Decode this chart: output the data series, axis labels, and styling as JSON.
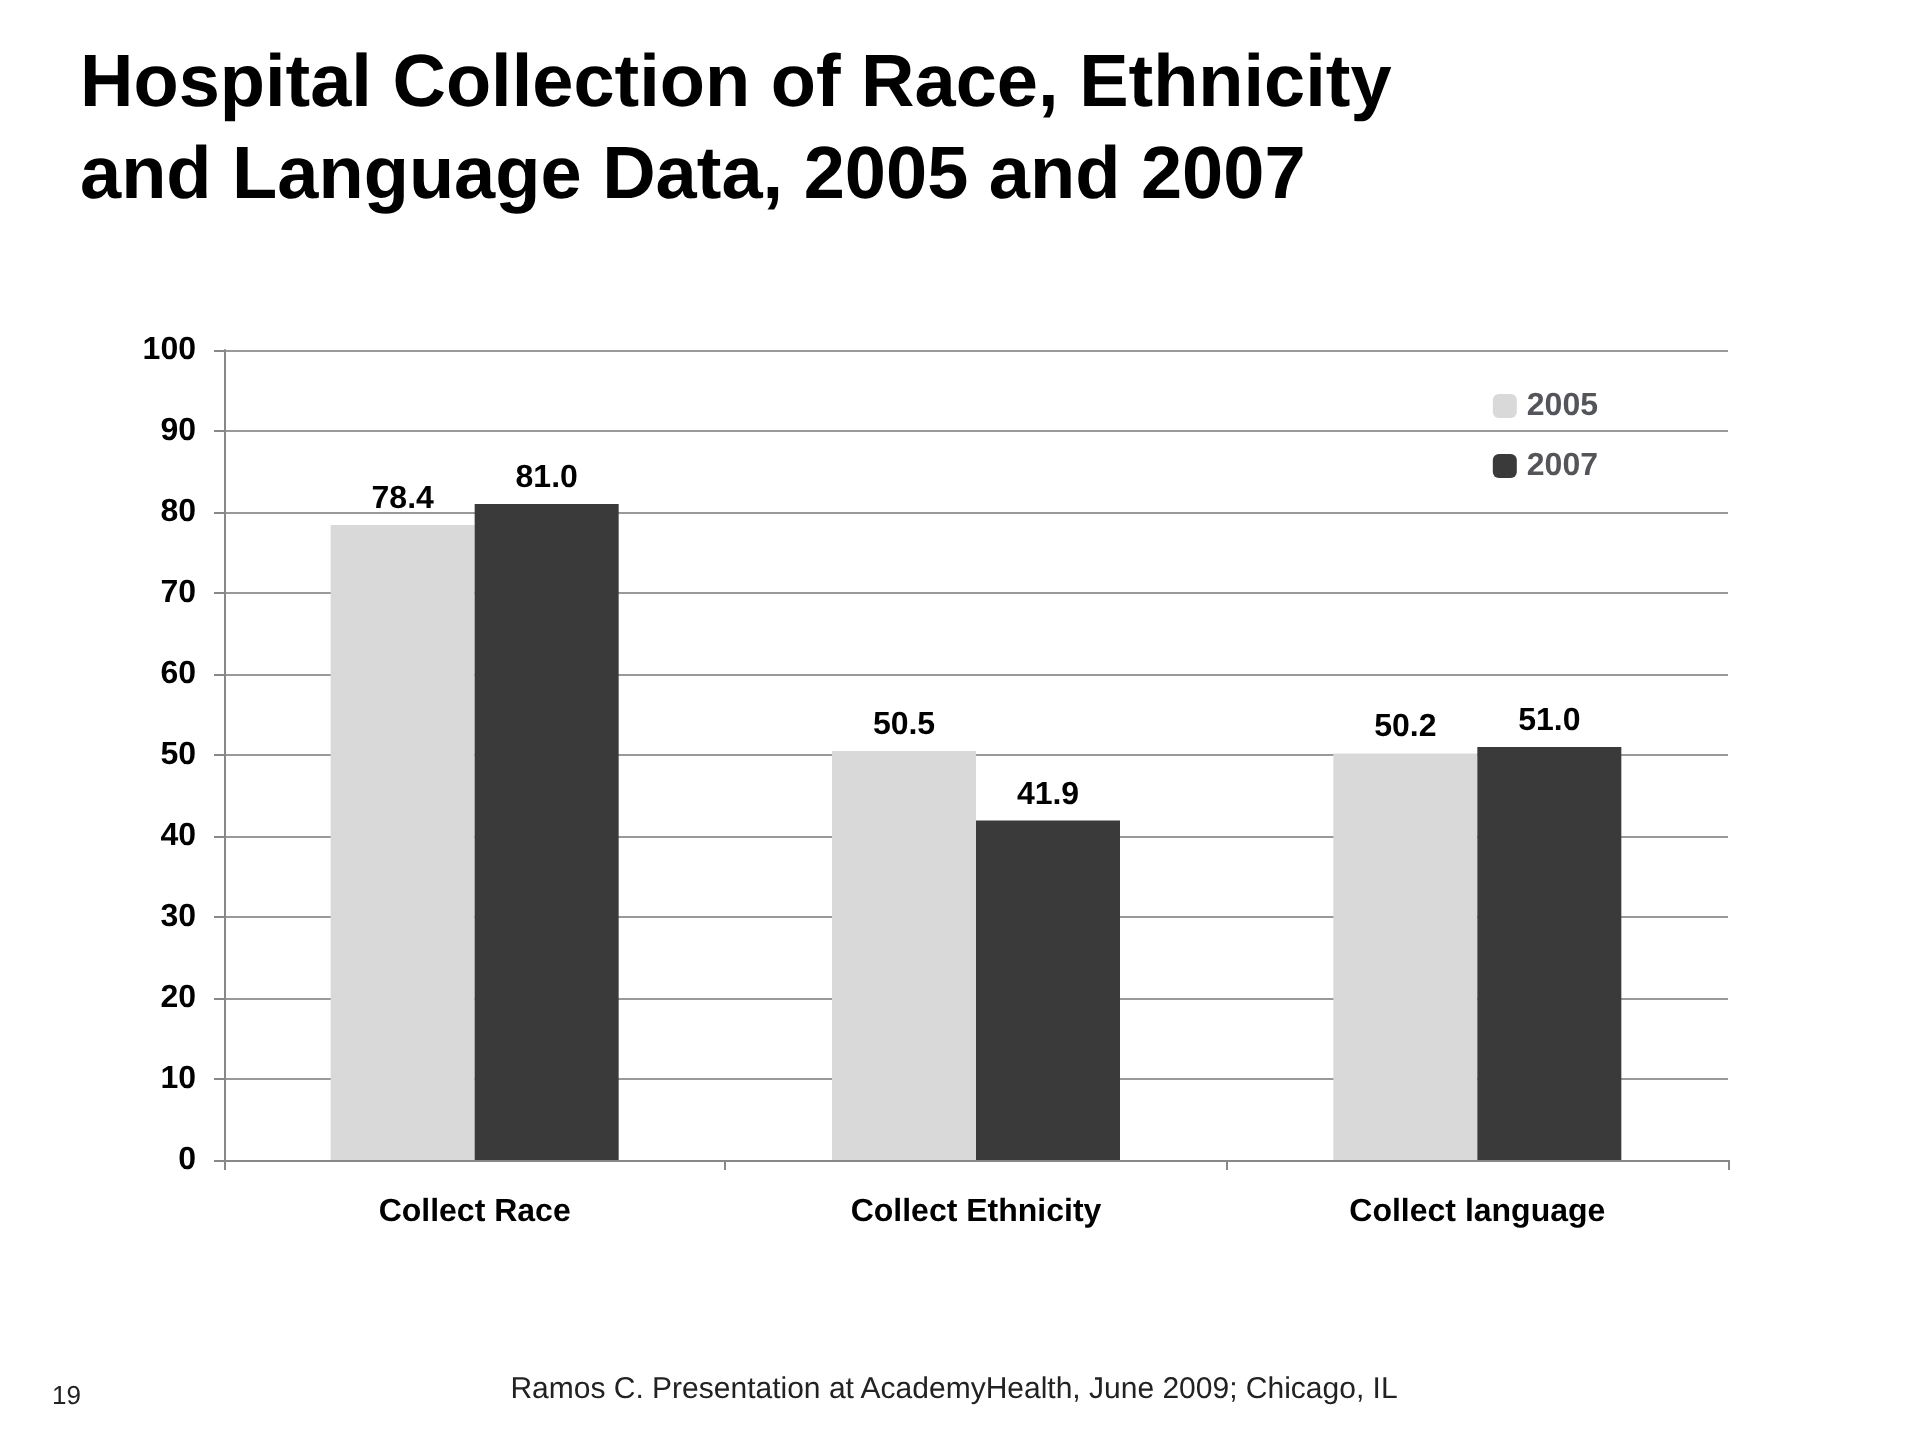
{
  "chart_data": {
    "type": "bar",
    "title": "Hospital Collection of Race, Ethnicity and Language Data, 2005 and 2007",
    "categories": [
      "Collect Race",
      "Collect Ethnicity",
      "Collect language"
    ],
    "series": [
      {
        "name": "2005",
        "color": "#d9d9d9",
        "values": [
          78.4,
          50.5,
          50.2
        ]
      },
      {
        "name": "2007",
        "color": "#3a3a3a",
        "values": [
          81.0,
          41.9,
          51.0
        ]
      }
    ],
    "value_labels": [
      [
        "78.4",
        "50.5",
        "50.2"
      ],
      [
        "81.0",
        "41.9",
        "51.0"
      ]
    ],
    "ylim": [
      0,
      100
    ],
    "yticks": [
      0,
      10,
      20,
      30,
      40,
      50,
      60,
      70,
      80,
      90,
      100
    ],
    "grid": "y",
    "legend": "top right",
    "annotations": [
      "19",
      "Ramos C. Presentation at AcademyHealth, June 2009; Chicago, IL"
    ]
  }
}
